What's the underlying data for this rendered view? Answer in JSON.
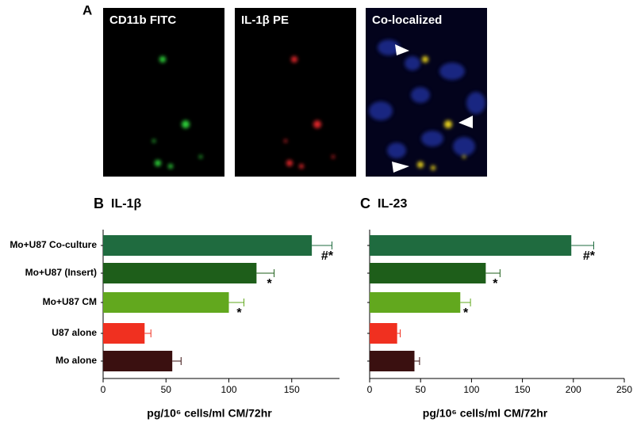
{
  "figure": {
    "panel_label": "A",
    "image_labels": [
      "CD11b FITC",
      "IL-1β PE",
      "Co-localized"
    ]
  },
  "chart_data": [
    {
      "type": "bar",
      "panel_label": "B",
      "title": "IL-1β",
      "x_label": "pg/10⁶ cells/ml CM/72hr",
      "categories": [
        "Mo+U87 Co-culture",
        "Mo+U87 (Insert)",
        "Mo+U87 CM",
        "U87 alone",
        "Mo alone"
      ],
      "values": [
        166,
        122,
        100,
        33,
        55
      ],
      "errors": [
        16,
        14,
        12,
        5,
        7
      ],
      "annotations": [
        "#*",
        "*",
        "*",
        null,
        null
      ],
      "colors": [
        "#1f6b3f",
        "#1e5e1a",
        "#62a81e",
        "#f03020",
        "#3a1010"
      ],
      "xlim": [
        0,
        188
      ],
      "xticks": [
        0,
        50,
        100,
        150
      ]
    },
    {
      "type": "bar",
      "panel_label": "C",
      "title": "IL-23",
      "x_label": "pg/10⁶ cells/ml CM/72hr",
      "categories": [
        null,
        null,
        null,
        null,
        null
      ],
      "values": [
        198,
        114,
        89,
        27,
        44
      ],
      "errors": [
        22,
        14,
        10,
        3,
        5
      ],
      "annotations": [
        "#*",
        "*",
        "*",
        null,
        null
      ],
      "colors": [
        "#1f6b3f",
        "#1e5e1a",
        "#62a81e",
        "#f03020",
        "#3a1010"
      ],
      "xlim": [
        0,
        250
      ],
      "xticks": [
        0,
        50,
        100,
        150,
        200,
        250
      ]
    }
  ]
}
